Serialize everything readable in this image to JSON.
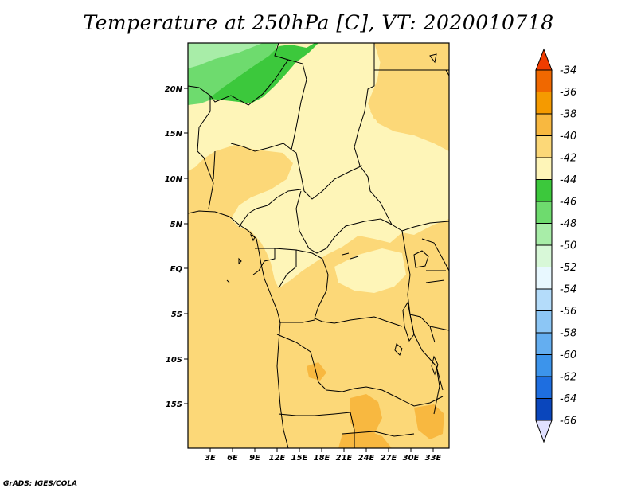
{
  "title": "Temperature at 250hPa [C], VT: 2020010718",
  "credit": "GrADS: IGES/COLA",
  "map": {
    "x_ticks": [
      "3E",
      "6E",
      "9E",
      "12E",
      "15E",
      "18E",
      "21E",
      "24E",
      "27E",
      "30E",
      "33E"
    ],
    "y_ticks": [
      "20N",
      "15N",
      "10N",
      "5N",
      "EQ",
      "5S",
      "10S",
      "15S"
    ]
  },
  "colorbar": {
    "labels": [
      "-34",
      "-36",
      "-38",
      "-40",
      "-42",
      "-44",
      "-46",
      "-48",
      "-50",
      "-52",
      "-54",
      "-56",
      "-58",
      "-60",
      "-62",
      "-64",
      "-66"
    ],
    "colors": {
      "top_arrow": "#f03c00",
      "bottom_arrow": "#e0e0ff",
      "boxes": [
        "#f06800",
        "#f59a00",
        "#f8b840",
        "#fcd878",
        "#fef5b8",
        "#3cc83c",
        "#6edb6e",
        "#a8eda8",
        "#d8f8d8",
        "#e8f8ff",
        "#b4dcfa",
        "#8cc6f5",
        "#64aef0",
        "#3c94eb",
        "#1e6ee0",
        "#0a46bc",
        "#000a78"
      ]
    }
  },
  "field_colors": {
    "ocean_warm": "#fcd878",
    "land_pale": "#fef5b8",
    "orange": "#f8b840",
    "dark_orange": "#f5a023",
    "green": "#3cc83c",
    "light_green": "#6edb6e",
    "pale_green": "#a8eda8"
  }
}
